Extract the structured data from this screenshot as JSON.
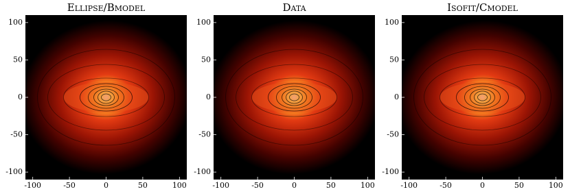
{
  "chart_data": [
    {
      "type": "image",
      "title": "Ellipse/Bmodel",
      "xlim": [
        -110,
        110
      ],
      "ylim": [
        -110,
        110
      ],
      "xticks": [
        -100,
        -50,
        0,
        50,
        100
      ],
      "yticks": [
        -100,
        -50,
        0,
        50,
        100
      ]
    },
    {
      "type": "image",
      "title": "Data",
      "xlim": [
        -110,
        110
      ],
      "ylim": [
        -110,
        110
      ],
      "xticks": [
        -100,
        -50,
        0,
        50,
        100
      ],
      "yticks": [
        -100,
        -50,
        0,
        50,
        100
      ]
    },
    {
      "type": "image",
      "title": "Isofit/Cmodel",
      "xlim": [
        -110,
        110
      ],
      "ylim": [
        -110,
        110
      ],
      "xticks": [
        -100,
        -50,
        0,
        50,
        100
      ],
      "yticks": [
        -100,
        -50,
        0,
        50,
        100
      ]
    }
  ]
}
